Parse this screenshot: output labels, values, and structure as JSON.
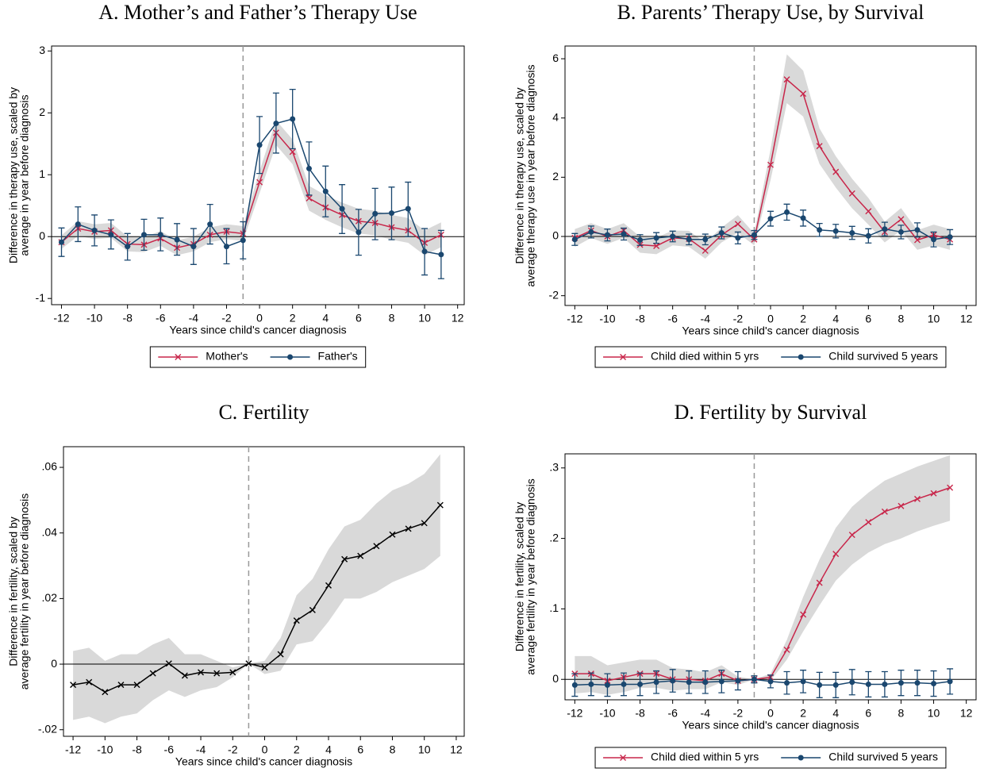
{
  "chart_data": [
    {
      "type": "line",
      "title": "A. Mother’s and Father’s Therapy Use",
      "x_label": "Years since child's cancer diagnosis",
      "y_label": [
        "Difference in therapy use, scaled by",
        "average  in year before diagnosis"
      ],
      "x": [
        -12,
        -11,
        -10,
        -9,
        -8,
        -7,
        -6,
        -5,
        -4,
        -3,
        -2,
        -1,
        0,
        1,
        2,
        3,
        4,
        5,
        6,
        7,
        8,
        9,
        10,
        11
      ],
      "xlim": [
        -12.6,
        12.4
      ],
      "xticks": [
        -12,
        -10,
        -8,
        -6,
        -4,
        -2,
        0,
        2,
        4,
        6,
        8,
        10,
        12
      ],
      "ylim": [
        -1.1,
        3.08
      ],
      "yticks": [
        -1,
        0,
        1,
        2,
        3
      ],
      "reference_x": -1,
      "reference_y": 0,
      "legend": true,
      "band_color": "#d9d9d9",
      "series": [
        {
          "name": "Mother's",
          "color": "#c8264a",
          "marker": "x",
          "ci": "band",
          "values": [
            -0.09,
            0.13,
            0.08,
            0.1,
            -0.12,
            -0.13,
            -0.03,
            -0.18,
            -0.12,
            0.03,
            0.08,
            0.05,
            0.88,
            1.68,
            1.37,
            0.62,
            0.47,
            0.35,
            0.25,
            0.22,
            0.15,
            0.1,
            -0.1,
            0.03
          ],
          "lower": [
            -0.2,
            0.01,
            -0.04,
            -0.02,
            -0.24,
            -0.25,
            -0.15,
            -0.3,
            -0.24,
            -0.09,
            -0.04,
            -0.07,
            0.7,
            1.48,
            1.17,
            0.42,
            0.27,
            0.15,
            0.05,
            0.02,
            -0.05,
            -0.1,
            -0.3,
            -0.17
          ],
          "upper": [
            0.02,
            0.25,
            0.2,
            0.22,
            0,
            -0.01,
            0.09,
            -0.06,
            0,
            0.15,
            0.2,
            0.17,
            1.06,
            1.88,
            1.57,
            0.82,
            0.67,
            0.55,
            0.45,
            0.42,
            0.35,
            0.3,
            0.1,
            0.23
          ]
        },
        {
          "name": "Father's",
          "color": "#1a476f",
          "marker": "circle",
          "ci": "bars",
          "values": [
            -0.09,
            0.2,
            0.1,
            0.03,
            -0.16,
            0.03,
            0.03,
            -0.05,
            -0.16,
            0.2,
            -0.16,
            -0.06,
            1.48,
            1.83,
            1.9,
            1.1,
            0.73,
            0.45,
            0.07,
            0.37,
            0.38,
            0.45,
            -0.24,
            -0.29
          ],
          "lower": [
            -0.32,
            -0.08,
            -0.15,
            -0.2,
            -0.38,
            -0.22,
            -0.23,
            -0.3,
            -0.45,
            -0.12,
            -0.44,
            -0.36,
            1.02,
            1.35,
            1.42,
            0.67,
            0.32,
            0.05,
            -0.3,
            -0.05,
            -0.05,
            0,
            -0.62,
            -0.68
          ],
          "upper": [
            0.14,
            0.48,
            0.35,
            0.27,
            0.05,
            0.28,
            0.3,
            0.21,
            0.13,
            0.52,
            0.13,
            0.24,
            1.94,
            2.32,
            2.38,
            1.53,
            1.14,
            0.84,
            0.44,
            0.78,
            0.8,
            0.88,
            0.13,
            0.1
          ]
        }
      ]
    },
    {
      "type": "line",
      "title": "B. Parents’ Therapy Use, by Survival",
      "x_label": "Years since child's cancer diagnosis",
      "y_label": [
        "Difference in therapy use, scaled by",
        "average therapy use in year before diagnosis"
      ],
      "x": [
        -12,
        -11,
        -10,
        -9,
        -8,
        -7,
        -6,
        -5,
        -4,
        -3,
        -2,
        -1,
        0,
        1,
        2,
        3,
        4,
        5,
        6,
        7,
        8,
        9,
        10,
        11
      ],
      "xlim": [
        -12.6,
        12.6
      ],
      "xticks": [
        -12,
        -10,
        -8,
        -6,
        -4,
        -2,
        0,
        2,
        4,
        6,
        8,
        10,
        12
      ],
      "ylim": [
        -2.33,
        6.43
      ],
      "yticks": [
        -2,
        0,
        2,
        4,
        6
      ],
      "reference_x": -1,
      "reference_y": 0,
      "legend": true,
      "band_color": "#d9d9d9",
      "series": [
        {
          "name": "Child died within 5 yrs",
          "color": "#c8264a",
          "marker": "x",
          "ci": "band",
          "values": [
            -0.05,
            0.2,
            0.0,
            0.2,
            -0.28,
            -0.32,
            -0.05,
            -0.08,
            -0.48,
            0.05,
            0.42,
            -0.1,
            2.42,
            5.3,
            4.82,
            3.05,
            2.18,
            1.45,
            0.85,
            0.15,
            0.58,
            -0.12,
            0.05,
            -0.1
          ],
          "lower": [
            -0.35,
            -0.05,
            -0.25,
            -0.05,
            -0.55,
            -0.6,
            -0.3,
            -0.35,
            -0.75,
            -0.2,
            0.12,
            -0.3,
            1.9,
            4.5,
            4.05,
            2.45,
            1.65,
            0.95,
            0.4,
            -0.2,
            0.2,
            -0.45,
            -0.3,
            -0.45
          ],
          "upper": [
            0.25,
            0.45,
            0.25,
            0.45,
            -0.01,
            -0.04,
            0.2,
            0.19,
            -0.21,
            0.3,
            0.72,
            0.1,
            2.94,
            6.15,
            5.6,
            3.65,
            2.71,
            1.95,
            1.3,
            0.5,
            0.96,
            0.21,
            0.4,
            0.25
          ]
        },
        {
          "name": "Child survived 5 years",
          "color": "#1a476f",
          "marker": "circle",
          "ci": "bars",
          "values": [
            -0.1,
            0.15,
            0.05,
            0.08,
            -0.12,
            -0.05,
            0.0,
            -0.1,
            -0.1,
            0.12,
            -0.05,
            0.05,
            0.6,
            0.82,
            0.62,
            0.22,
            0.18,
            0.12,
            0.02,
            0.25,
            0.15,
            0.22,
            -0.1,
            -0.02
          ],
          "lower": [
            -0.3,
            -0.05,
            -0.15,
            -0.12,
            -0.3,
            -0.23,
            -0.18,
            -0.28,
            -0.28,
            -0.08,
            -0.25,
            -0.1,
            0.35,
            0.55,
            0.35,
            0.0,
            -0.05,
            -0.1,
            -0.22,
            0.02,
            -0.08,
            -0.02,
            -0.35,
            -0.27
          ],
          "upper": [
            0.1,
            0.35,
            0.25,
            0.28,
            0.06,
            0.13,
            0.18,
            0.08,
            0.08,
            0.32,
            0.15,
            0.2,
            0.85,
            1.09,
            0.89,
            0.44,
            0.41,
            0.34,
            0.26,
            0.48,
            0.38,
            0.46,
            0.15,
            0.23
          ]
        }
      ]
    },
    {
      "type": "line",
      "title": "C. Fertility",
      "x_label": "Years since child's cancer diagnosis",
      "y_label": [
        "Difference in fertility, scaled by",
        "average fertility in year before diagnosis"
      ],
      "x": [
        -12,
        -11,
        -10,
        -9,
        -8,
        -7,
        -6,
        -5,
        -4,
        -3,
        -2,
        -1,
        0,
        1,
        2,
        3,
        4,
        5,
        6,
        7,
        8,
        9,
        10,
        11
      ],
      "xlim": [
        -12.6,
        12.5
      ],
      "xticks": [
        -12,
        -10,
        -8,
        -6,
        -4,
        -2,
        0,
        2,
        4,
        6,
        8,
        10,
        12
      ],
      "ylim": [
        -0.022,
        0.0663
      ],
      "yticks": [
        {
          "value": -0.02,
          "label": "-.02"
        },
        0,
        {
          "value": 0.02,
          "label": ".02"
        },
        {
          "value": 0.04,
          "label": ".04"
        },
        {
          "value": 0.06,
          "label": ".06"
        }
      ],
      "reference_x": -1,
      "reference_y": 0,
      "legend": false,
      "band_color": "#d9d9d9",
      "series": [
        {
          "color": "#000000",
          "marker": "x",
          "ci": "band",
          "values": [
            -0.0063,
            -0.0055,
            -0.0085,
            -0.0063,
            -0.0063,
            -0.0028,
            0.0002,
            -0.0035,
            -0.0025,
            -0.0028,
            -0.0025,
            0.0002,
            -0.001,
            0.003,
            0.0133,
            0.0165,
            0.024,
            0.032,
            0.033,
            0.036,
            0.0395,
            0.0413,
            0.043,
            0.0485
          ],
          "lower": [
            -0.017,
            -0.016,
            -0.018,
            -0.016,
            -0.015,
            -0.011,
            -0.008,
            -0.01,
            -0.008,
            -0.007,
            -0.004,
            0.0002,
            -0.003,
            -0.002,
            0.006,
            0.007,
            0.013,
            0.02,
            0.02,
            0.022,
            0.025,
            0.027,
            0.029,
            0.033
          ],
          "upper": [
            0.004,
            0.005,
            0.001,
            0.003,
            0.003,
            0.006,
            0.008,
            0.003,
            0.003,
            0.001,
            -0.001,
            0.0002,
            0.001,
            0.008,
            0.021,
            0.026,
            0.035,
            0.042,
            0.044,
            0.049,
            0.053,
            0.055,
            0.058,
            0.064
          ]
        }
      ]
    },
    {
      "type": "line",
      "title": "D. Fertility by Survival",
      "x_label": "Years since child's cancer diagnosis",
      "y_label": [
        "Difference in fertility, scaled by",
        "average fertility in year before diagnosis"
      ],
      "x": [
        -12,
        -11,
        -10,
        -9,
        -8,
        -7,
        -6,
        -5,
        -4,
        -3,
        -2,
        -1,
        0,
        1,
        2,
        3,
        4,
        5,
        6,
        7,
        8,
        9,
        10,
        11
      ],
      "xlim": [
        -12.6,
        12.6
      ],
      "xticks": [
        -12,
        -10,
        -8,
        -6,
        -4,
        -2,
        0,
        2,
        4,
        6,
        8,
        10,
        12
      ],
      "ylim": [
        -0.029,
        0.32
      ],
      "yticks": [
        0,
        {
          "value": 0.1,
          "label": ".1"
        },
        {
          "value": 0.2,
          "label": ".2"
        },
        {
          "value": 0.3,
          "label": ".3"
        }
      ],
      "reference_x": -1,
      "reference_y": 0,
      "legend": true,
      "band_color": "#d9d9d9",
      "series": [
        {
          "name": "Child died within 5 yrs",
          "color": "#c8264a",
          "marker": "x",
          "ci": "band",
          "values": [
            0.008,
            0.008,
            -0.002,
            0.003,
            0.008,
            0.008,
            0.0,
            0.0,
            -0.002,
            0.008,
            -0.002,
            0,
            0.003,
            0.042,
            0.092,
            0.137,
            0.178,
            0.205,
            0.223,
            0.238,
            0.246,
            0.256,
            0.264,
            0.272
          ],
          "lower": [
            -0.02,
            -0.018,
            -0.022,
            -0.018,
            -0.012,
            -0.012,
            -0.016,
            -0.014,
            -0.014,
            -0.004,
            -0.008,
            0,
            -0.002,
            0.028,
            0.068,
            0.105,
            0.14,
            0.163,
            0.18,
            0.192,
            0.2,
            0.21,
            0.218,
            0.225
          ],
          "upper": [
            0.033,
            0.033,
            0.02,
            0.024,
            0.028,
            0.028,
            0.016,
            0.014,
            0.01,
            0.02,
            0.004,
            0,
            0.008,
            0.056,
            0.117,
            0.17,
            0.215,
            0.245,
            0.265,
            0.282,
            0.292,
            0.302,
            0.31,
            0.318
          ]
        },
        {
          "name": "Child survived 5 years",
          "color": "#1a476f",
          "marker": "circle",
          "ci": "bars",
          "values": [
            -0.008,
            -0.007,
            -0.008,
            -0.007,
            -0.007,
            -0.004,
            -0.002,
            -0.004,
            -0.004,
            -0.003,
            -0.002,
            0,
            -0.003,
            -0.005,
            -0.003,
            -0.008,
            -0.008,
            -0.004,
            -0.007,
            -0.007,
            -0.005,
            -0.005,
            -0.006,
            -0.003
          ],
          "lower": [
            -0.024,
            -0.023,
            -0.024,
            -0.023,
            -0.023,
            -0.02,
            -0.018,
            -0.02,
            -0.02,
            -0.019,
            -0.015,
            -0.005,
            -0.012,
            -0.021,
            -0.019,
            -0.026,
            -0.026,
            -0.022,
            -0.025,
            -0.025,
            -0.023,
            -0.023,
            -0.024,
            -0.021
          ],
          "upper": [
            0.008,
            0.009,
            0.008,
            0.009,
            0.009,
            0.012,
            0.014,
            0.012,
            0.012,
            0.013,
            0.011,
            0.005,
            0.006,
            0.011,
            0.013,
            0.01,
            0.01,
            0.014,
            0.011,
            0.011,
            0.013,
            0.013,
            0.012,
            0.015
          ]
        }
      ]
    }
  ]
}
